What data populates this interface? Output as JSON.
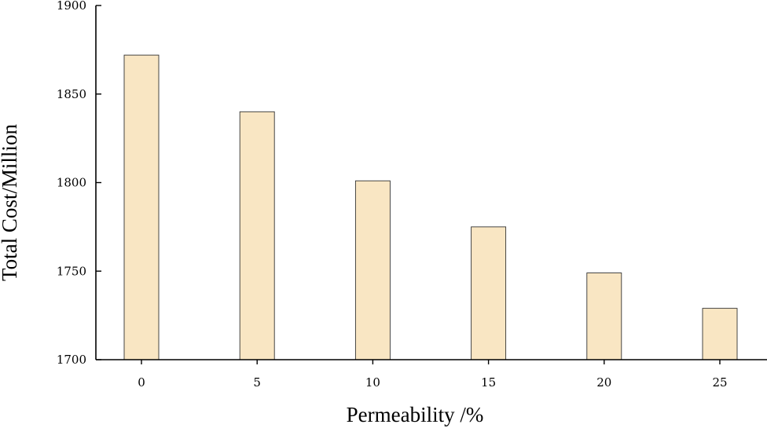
{
  "chart_data": {
    "type": "bar",
    "title": "",
    "xlabel": "Permeability /%",
    "ylabel": "Total Cost/Million",
    "categories": [
      "0",
      "5",
      "10",
      "15",
      "20",
      "25"
    ],
    "values": [
      1872,
      1840,
      1801,
      1775,
      1749,
      1729
    ],
    "ylim": [
      1700,
      1900
    ],
    "yticks": [
      "1700",
      "1750",
      "1800",
      "1850",
      "1900"
    ],
    "grid": false,
    "legend": "none",
    "bar_color": "#F9E6C3",
    "bar_edge_color": "#333333",
    "axis_color": "#000000"
  }
}
